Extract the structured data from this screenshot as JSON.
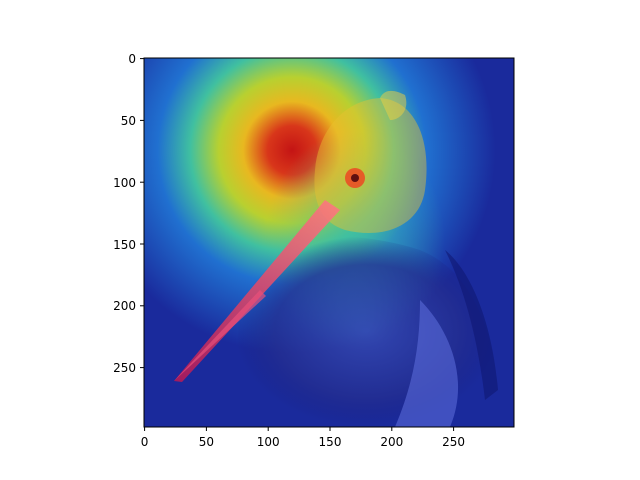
{
  "image": {
    "subject": "bird-heatmap-overlay",
    "colormap": "jet",
    "heatmap_peak_color": "#d01818",
    "background_low_color": "#1428a0"
  },
  "axes": {
    "x_ticks": [
      "0",
      "50",
      "100",
      "150",
      "200",
      "250"
    ],
    "y_ticks": [
      "0",
      "50",
      "100",
      "150",
      "200",
      "250"
    ],
    "xlim": [
      0,
      299
    ],
    "ylim": [
      299,
      0
    ]
  }
}
